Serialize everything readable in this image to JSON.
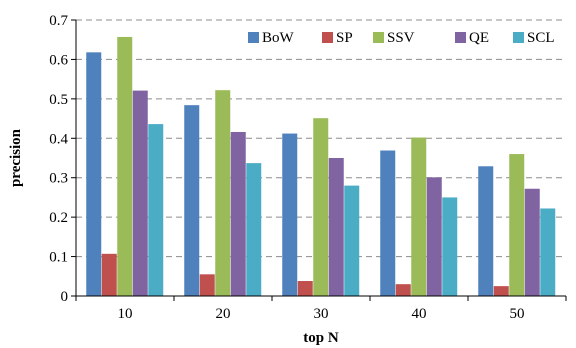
{
  "chart_data": {
    "type": "bar",
    "title": "",
    "xlabel": "top N",
    "ylabel": "precision",
    "categories": [
      "10",
      "20",
      "30",
      "40",
      "50"
    ],
    "ylim": [
      0,
      0.7
    ],
    "yticks": [
      "0",
      "0.1",
      "0.2",
      "0.3",
      "0.4",
      "0.5",
      "0.6",
      "0.7"
    ],
    "grid": "horizontal dashed",
    "legend_position": "top-right",
    "series": [
      {
        "name": "BoW",
        "color": "#4f81bd",
        "values": [
          0.618,
          0.484,
          0.412,
          0.369,
          0.329
        ]
      },
      {
        "name": "SP",
        "color": "#c0504d",
        "values": [
          0.107,
          0.055,
          0.038,
          0.03,
          0.025
        ]
      },
      {
        "name": "SSV",
        "color": "#9bbb59",
        "values": [
          0.657,
          0.522,
          0.451,
          0.402,
          0.36
        ]
      },
      {
        "name": "QE",
        "color": "#8064a2",
        "values": [
          0.521,
          0.416,
          0.35,
          0.301,
          0.272
        ]
      },
      {
        "name": "SCL",
        "color": "#4bacc6",
        "values": [
          0.436,
          0.337,
          0.28,
          0.25,
          0.222
        ]
      }
    ]
  }
}
